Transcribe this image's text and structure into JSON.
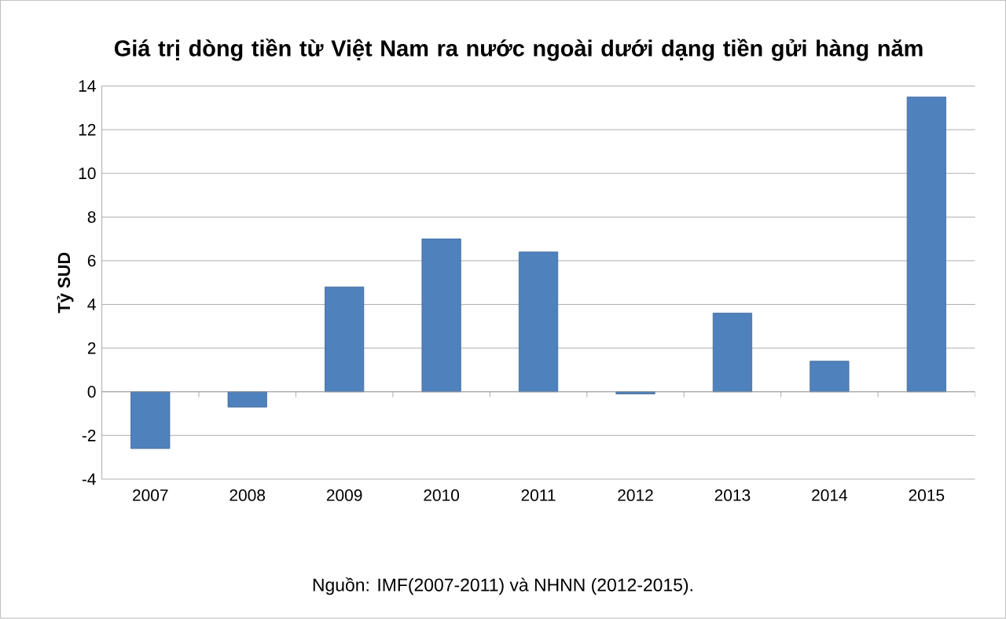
{
  "chart_data": {
    "type": "bar",
    "title": "Giá trị dòng tiền từ Việt Nam ra nước ngoài dưới dạng tiền gửi hàng năm",
    "ylabel": "Tỷ SUD",
    "categories": [
      "2007",
      "2008",
      "2009",
      "2010",
      "2011",
      "2012",
      "2013",
      "2014",
      "2015"
    ],
    "values": [
      -2.6,
      -0.7,
      4.8,
      7.0,
      6.4,
      -0.1,
      3.6,
      1.4,
      13.5
    ],
    "color": "#4f81bd",
    "ylim": [
      -4,
      14
    ],
    "yticks": [
      -4,
      -2,
      0,
      2,
      4,
      6,
      8,
      10,
      12,
      14
    ],
    "grid": "y",
    "annotations": [
      "Nguồn: IMF(2007-2011) và NHNN (2012-2015)."
    ]
  }
}
